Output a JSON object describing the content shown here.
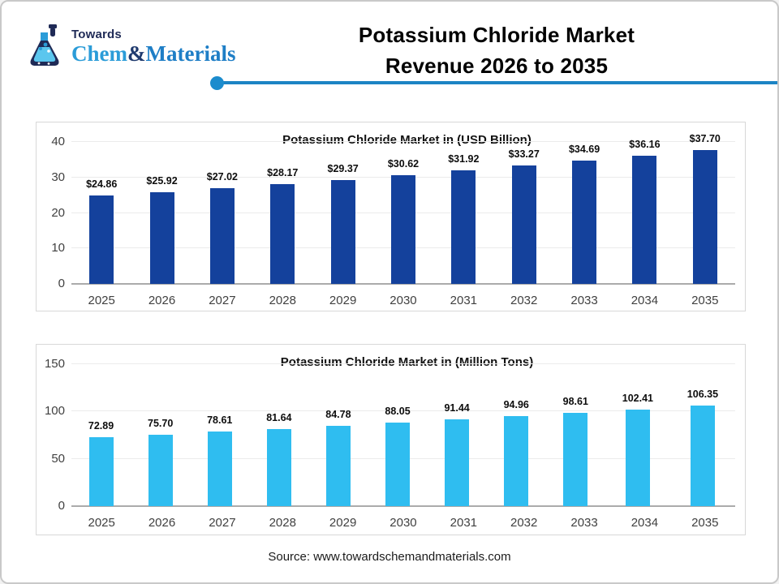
{
  "logo": {
    "towards": "Towards",
    "brand_chem": "Chem",
    "brand_amp": "&",
    "brand_materials": "Materials",
    "brand_color_light": "#2b9cd8",
    "brand_color_dark": "#1f3a6e",
    "brand_color_mid": "#1e7ec6",
    "navy": "#1f2a56"
  },
  "header": {
    "title_line1": "Potassium Chloride Market",
    "title_line2": "Revenue 2026 to 2035",
    "divider_color": "#1c84c4"
  },
  "source": "Source: www.towardschemandmaterials.com",
  "chart_data": [
    {
      "type": "bar",
      "title": "Potassium Chloride Market in (USD Billion)",
      "categories": [
        "2025",
        "2026",
        "2027",
        "2028",
        "2029",
        "2030",
        "2031",
        "2032",
        "2033",
        "2034",
        "2035"
      ],
      "values": [
        24.86,
        25.92,
        27.02,
        28.17,
        29.37,
        30.62,
        31.92,
        33.27,
        34.69,
        36.16,
        37.7
      ],
      "value_labels": [
        "$24.86",
        "$25.92",
        "$27.02",
        "$28.17",
        "$29.37",
        "$30.62",
        "$31.92",
        "$33.27",
        "$34.69",
        "$36.16",
        "$37.70"
      ],
      "bar_color": "#14419c",
      "xlabel": "",
      "ylabel": "",
      "ylim": [
        0,
        40
      ],
      "yticks": [
        0,
        10,
        20,
        30,
        40
      ],
      "grid": true,
      "legend": "none"
    },
    {
      "type": "bar",
      "title": "Potassium Chloride Market in (Million Tons)",
      "categories": [
        "2025",
        "2026",
        "2027",
        "2028",
        "2029",
        "2030",
        "2031",
        "2032",
        "2033",
        "2034",
        "2035"
      ],
      "values": [
        72.89,
        75.7,
        78.61,
        81.64,
        84.78,
        88.05,
        91.44,
        94.96,
        98.61,
        102.41,
        106.35
      ],
      "value_labels": [
        "72.89",
        "75.70",
        "78.61",
        "81.64",
        "84.78",
        "88.05",
        "91.44",
        "94.96",
        "98.61",
        "102.41",
        "106.35"
      ],
      "bar_color": "#2fbdf0",
      "xlabel": "",
      "ylabel": "",
      "ylim": [
        0,
        150
      ],
      "yticks": [
        0,
        50,
        100,
        150
      ],
      "grid": true,
      "legend": "none"
    }
  ]
}
